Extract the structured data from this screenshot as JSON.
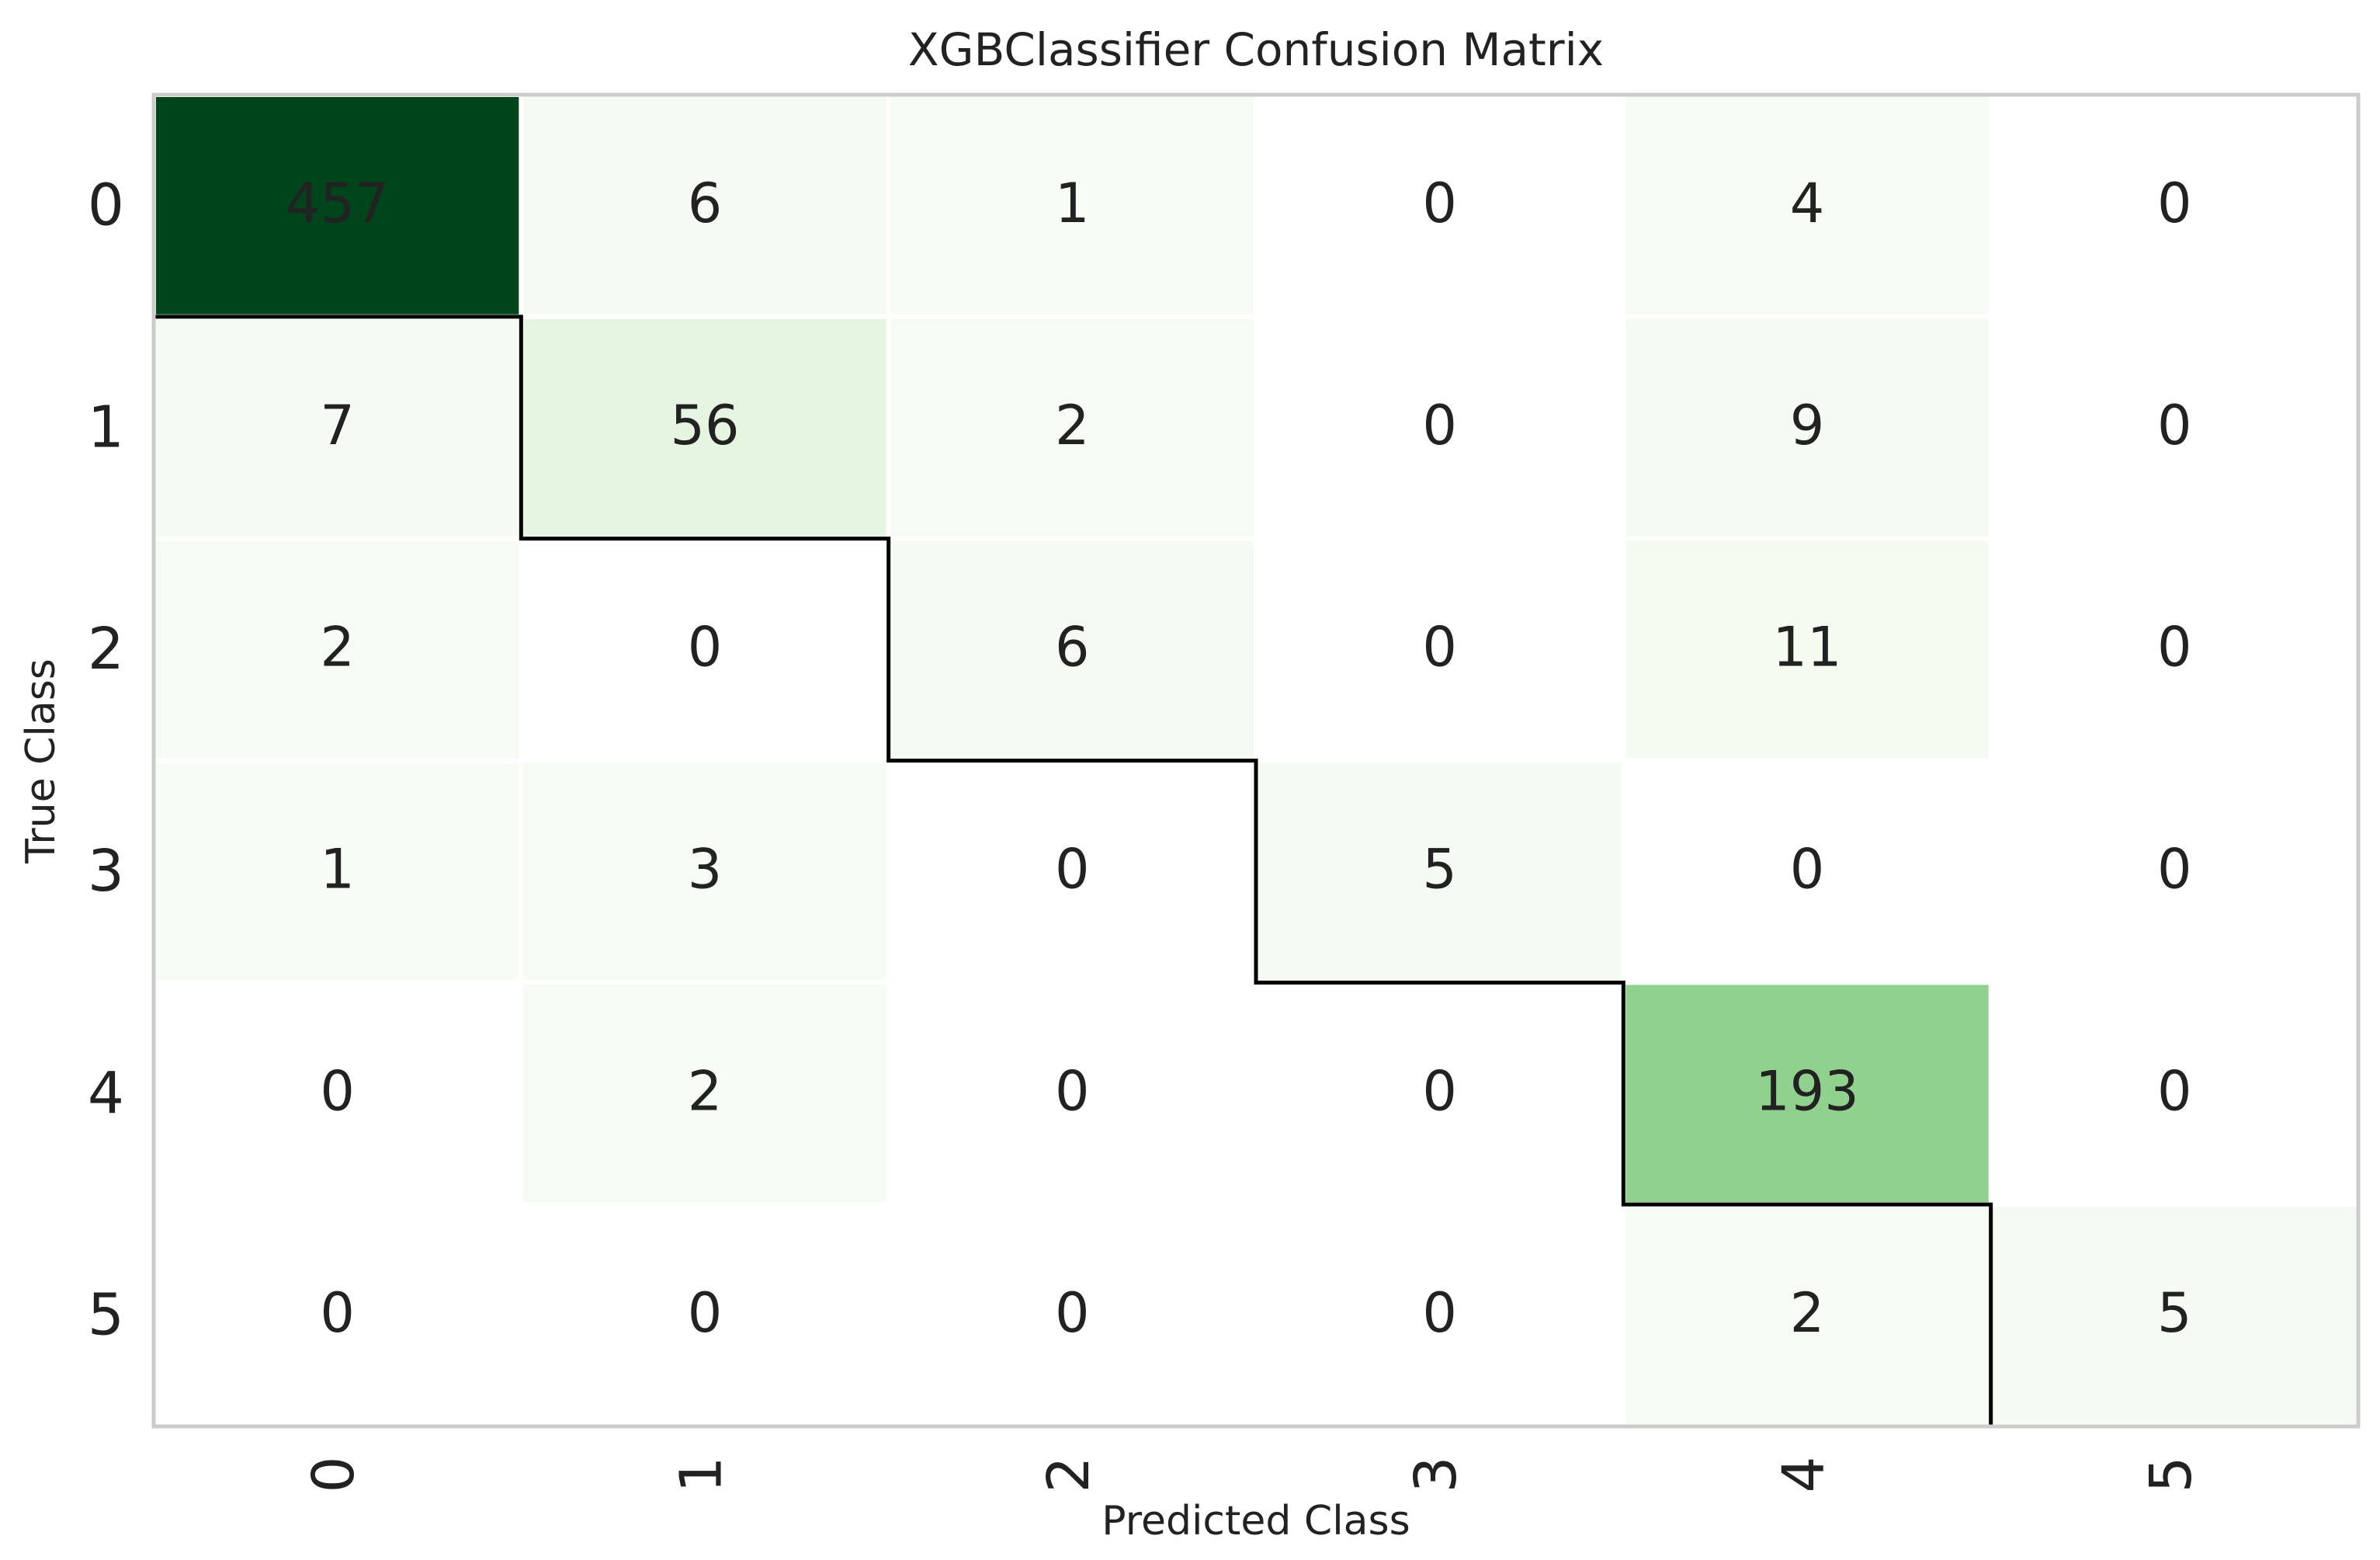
{
  "chart_data": {
    "type": "heatmap",
    "title": "XGBClassifier Confusion Matrix",
    "x_label": "Predicted Class",
    "y_label": "True Class",
    "categories": [
      "0",
      "1",
      "2",
      "3",
      "4",
      "5"
    ],
    "y_categories": [
      "0",
      "1",
      "2",
      "3",
      "4",
      "5"
    ],
    "values": [
      [
        457,
        6,
        1,
        0,
        4,
        0
      ],
      [
        7,
        56,
        2,
        0,
        9,
        0
      ],
      [
        2,
        0,
        6,
        0,
        11,
        0
      ],
      [
        1,
        3,
        0,
        5,
        0,
        0
      ],
      [
        0,
        2,
        0,
        0,
        193,
        0
      ],
      [
        0,
        0,
        0,
        0,
        2,
        5
      ]
    ],
    "colormap": "Greens"
  }
}
